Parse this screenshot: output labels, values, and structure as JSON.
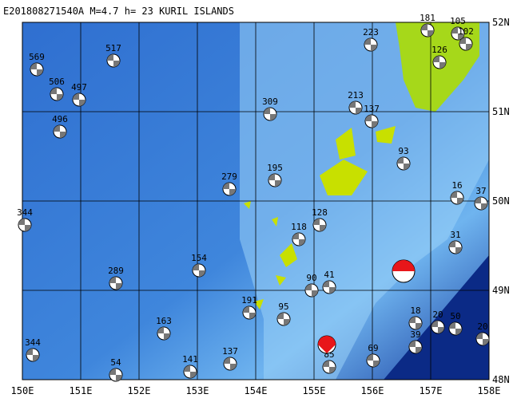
{
  "header": {
    "title": "E201808271540A  M=4.7  h= 23  KURIL ISLANDS"
  },
  "lon_labels": [
    "150E",
    "151E",
    "152E",
    "153E",
    "154E",
    "155E",
    "156E",
    "157E",
    "158E"
  ],
  "lat_labels": [
    "52N",
    "51N",
    "50N",
    "49N",
    "48N"
  ],
  "events": [
    "569",
    "506",
    "497",
    "517",
    "496",
    "344",
    "289",
    "344",
    "54",
    "163",
    "154",
    "279",
    "309",
    "195",
    "223",
    "181",
    "105",
    "102",
    "126",
    "213",
    "137",
    "93",
    "128",
    "118",
    "90",
    "41",
    "31",
    "37",
    "16",
    "20",
    "50",
    "20",
    "18",
    "39",
    "69",
    "141",
    "137",
    "191",
    "95",
    "85"
  ]
}
